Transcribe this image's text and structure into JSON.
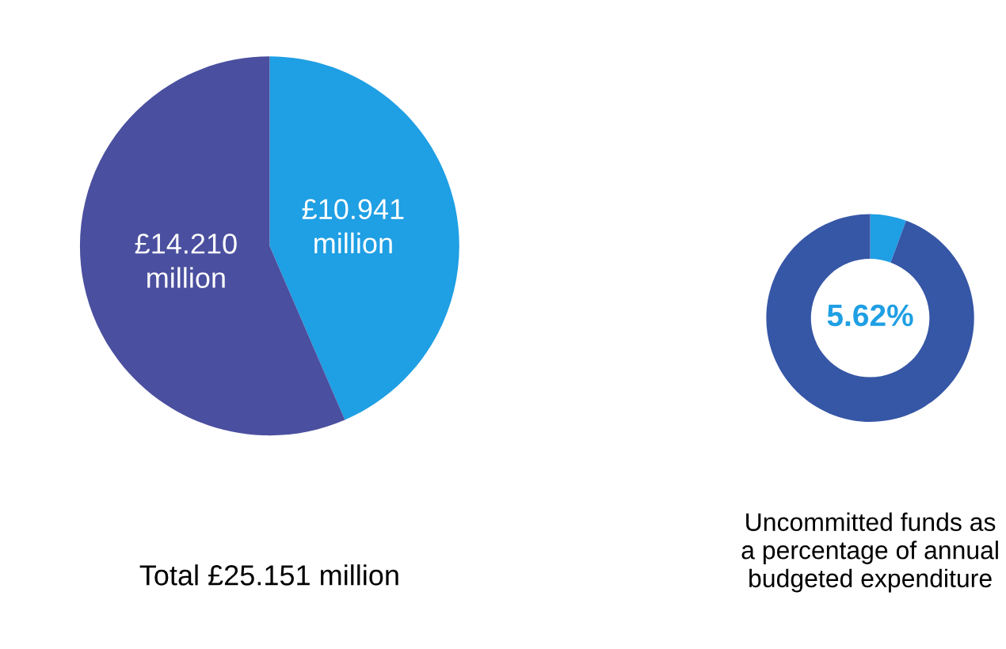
{
  "chart_data": [
    {
      "type": "pie",
      "title": "Total £25.151 million",
      "categories": [
        null,
        null
      ],
      "values": [
        10.941,
        14.21
      ],
      "colors": [
        "#1f9fe4",
        "#4a4f9f"
      ],
      "value_labels": [
        "£10.941",
        "£14.210"
      ],
      "annotations": [
        "million",
        "million"
      ],
      "legend": false
    },
    {
      "type": "donut",
      "title": "Uncommitted funds as\na percentage of annual\nbudgeted expenditure",
      "categories": [
        null,
        null
      ],
      "values": [
        5.62,
        94.38
      ],
      "colors": [
        "#1f9fe4",
        "#3656a6"
      ],
      "annotations": [
        "5.62%"
      ],
      "legend": false
    }
  ]
}
